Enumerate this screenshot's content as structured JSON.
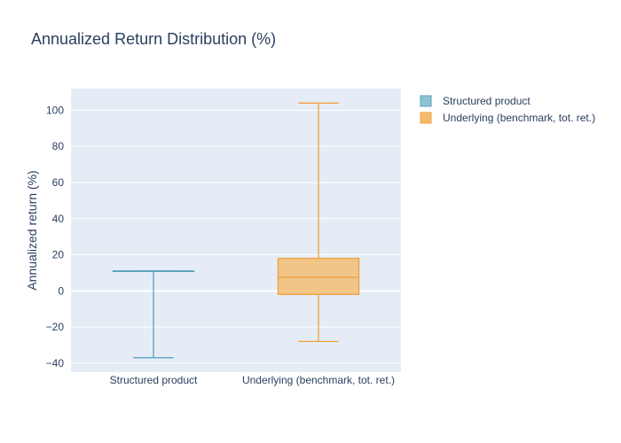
{
  "chart_data": {
    "type": "box",
    "title": "Annualized Return Distribution (%)",
    "xlabel": "",
    "ylabel": "Annualized return (%)",
    "ylim": [
      -45,
      112
    ],
    "yticks": [
      -40,
      -20,
      0,
      20,
      40,
      60,
      80,
      100
    ],
    "categories": [
      "Structured product",
      "Underlying (benchmark, tot. ret.)"
    ],
    "grid": true,
    "legend_position": "top-right",
    "series": [
      {
        "name": "Structured product",
        "color": "#5aa0bf",
        "fill": "#8ec3d6",
        "min": -37,
        "q1": 11,
        "median": 11,
        "q3": 11,
        "max": 11
      },
      {
        "name": "Underlying (benchmark, tot. ret.)",
        "color": "#f0a040",
        "fill": "#f2bb6c",
        "min": -28,
        "q1": -2,
        "median": 7.5,
        "q3": 18,
        "max": 104
      }
    ]
  }
}
